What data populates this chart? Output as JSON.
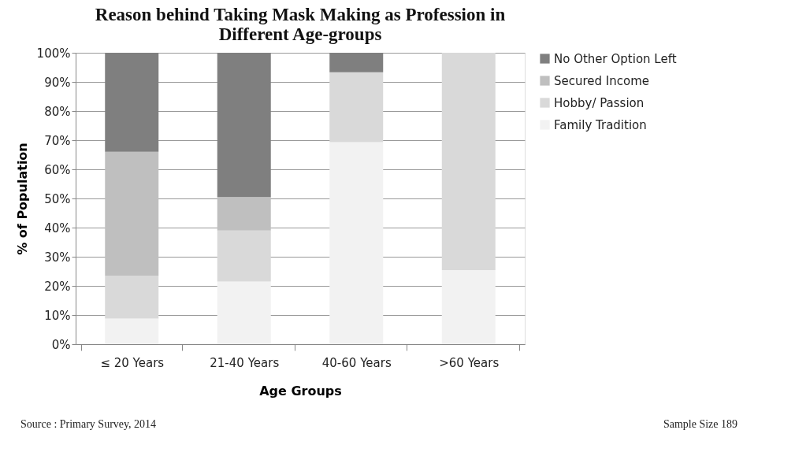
{
  "chart_data": {
    "type": "bar",
    "title": "Reason behind Taking Mask Making as Profession in Different Age-groups",
    "xlabel": "Age Groups",
    "ylabel": "% of Population",
    "categories": [
      "≤ 20 Years",
      "21-40 Years",
      "40-60 Years",
      ">60 Years"
    ],
    "stacked": true,
    "series": [
      {
        "name": "Family Tradition",
        "color": "#f2f2f2",
        "values": [
          8.8,
          21.5,
          69.3,
          25.4
        ]
      },
      {
        "name": "Hobby/ Passion",
        "color": "#d9d9d9",
        "values": [
          14.7,
          17.5,
          24.0,
          74.6
        ]
      },
      {
        "name": "Secured Income",
        "color": "#bfbfbf",
        "values": [
          42.5,
          11.5,
          0,
          0
        ]
      },
      {
        "name": "No Other Option Left",
        "color": "#7f7f7f",
        "values": [
          34.0,
          49.5,
          6.7,
          0
        ]
      }
    ],
    "ylim": [
      0,
      100
    ],
    "yticks": [
      {
        "value": 0,
        "label": "0%"
      },
      {
        "value": 10,
        "label": "10%"
      },
      {
        "value": 20,
        "label": "20%"
      },
      {
        "value": 30,
        "label": "30%"
      },
      {
        "value": 40,
        "label": "40%"
      },
      {
        "value": 50,
        "label": "50%"
      },
      {
        "value": 60,
        "label": "60%"
      },
      {
        "value": 70,
        "label": "70%"
      },
      {
        "value": 80,
        "label": "80%"
      },
      {
        "value": 90,
        "label": "90%"
      },
      {
        "value": 100,
        "label": "100%"
      }
    ],
    "grid": "y",
    "legend": "right",
    "annotations": [
      "Source : Primary Survey, 2014",
      "Sample Size 189"
    ]
  }
}
